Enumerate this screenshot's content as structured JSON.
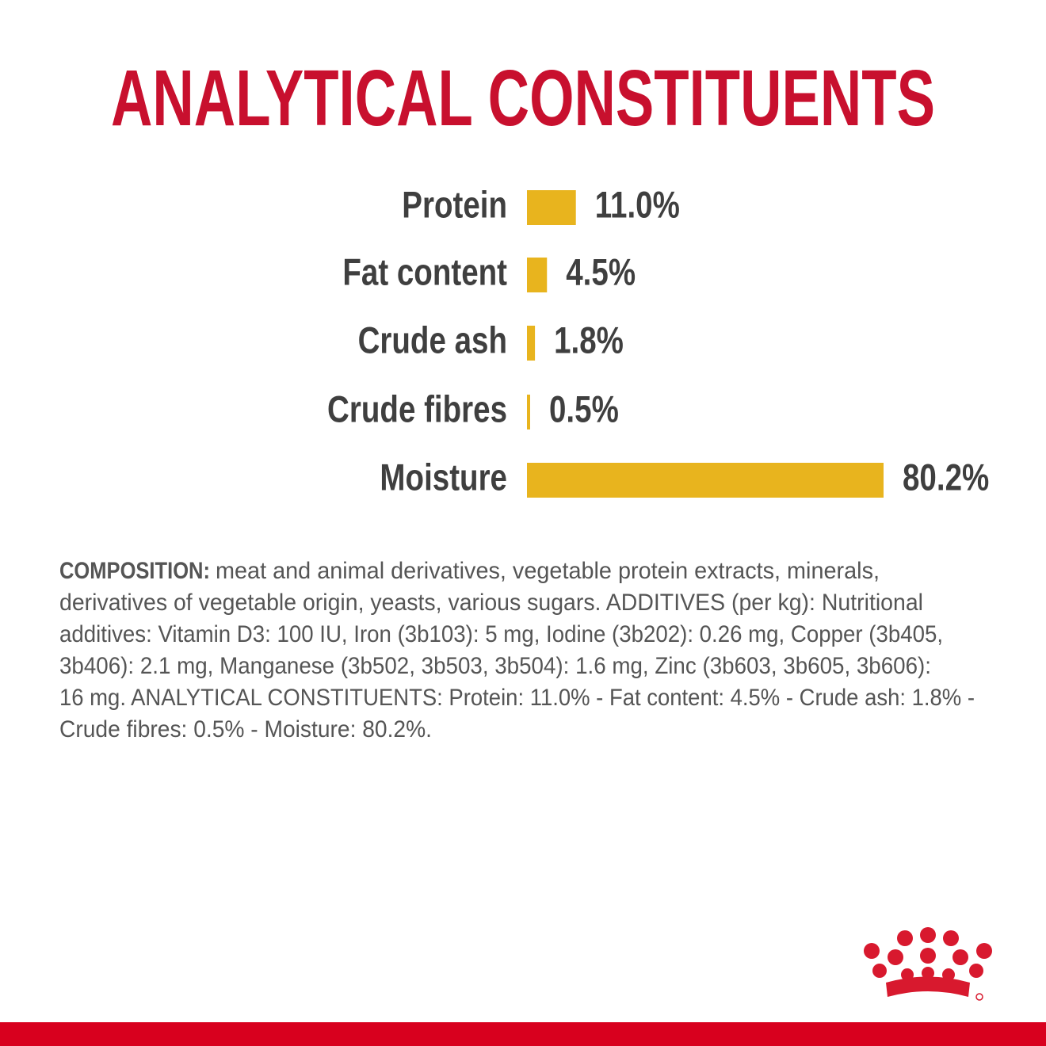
{
  "chart_data": {
    "type": "bar",
    "orientation": "horizontal",
    "title": "ANALYTICAL CONSTITUENTS",
    "categories": [
      "Protein",
      "Fat content",
      "Crude ash",
      "Crude fibres",
      "Moisture"
    ],
    "values": [
      11.0,
      4.5,
      1.8,
      0.5,
      80.2
    ],
    "value_labels": [
      "11.0%",
      "4.5%",
      "1.8%",
      "0.5%",
      "80.2%"
    ],
    "color": "#e8b41e",
    "title_color": "#c8102e"
  },
  "composition": {
    "label": "COMPOSITION:",
    "lines": [
      "meat and animal derivatives, vegetable protein extracts, minerals,",
      "derivatives of vegetable origin, yeasts, various sugars. ADDITIVES (per kg): Nutritional",
      "additives: Vitamin D3: 100 IU, Iron (3b103): 5 mg, Iodine (3b202): 0.26 mg, Copper (3b405,",
      "3b406): 2.1 mg, Manganese (3b502, 3b503, 3b504): 1.6 mg, Zinc (3b603, 3b605, 3b606):",
      "16 mg. ANALYTICAL CONSTITUENTS: Protein: 11.0% - Fat content: 4.5% - Crude ash: 1.8% -",
      "Crude fibres: 0.5% - Moisture: 80.2%."
    ]
  }
}
